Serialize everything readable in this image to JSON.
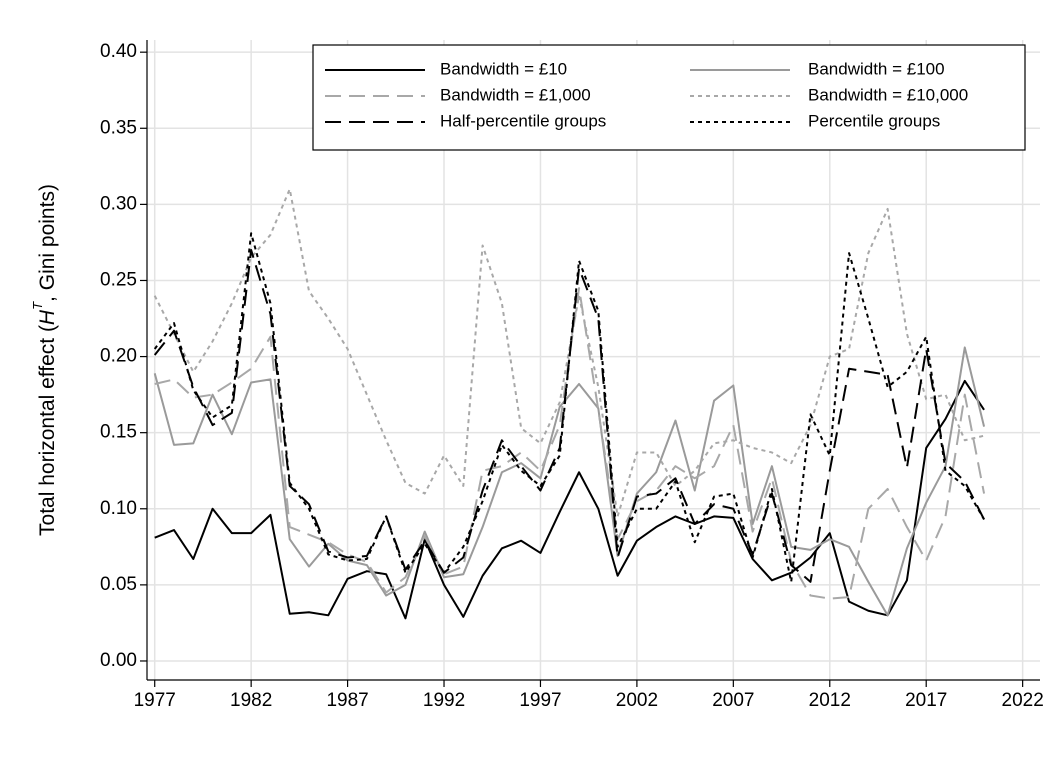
{
  "chart_data": {
    "type": "line",
    "ylabel": {
      "prefix": "Total horizontal effect (",
      "symbol": "H",
      "superscript": "T",
      "suffix": ", Gini points)"
    },
    "x": [
      1977,
      1978,
      1979,
      1980,
      1981,
      1982,
      1983,
      1984,
      1985,
      1986,
      1987,
      1988,
      1989,
      1990,
      1991,
      1992,
      1993,
      1994,
      1995,
      1996,
      1997,
      1998,
      1999,
      2000,
      2001,
      2002,
      2003,
      2004,
      2005,
      2006,
      2007,
      2008,
      2009,
      2010,
      2011,
      2012,
      2013,
      2014,
      2015,
      2016,
      2017,
      2018,
      2019,
      2020
    ],
    "series": [
      {
        "name": "Bandwidth = £10",
        "color": "#000000",
        "style": "solid",
        "values": [
          0.081,
          0.086,
          0.067,
          0.1,
          0.084,
          0.084,
          0.096,
          0.031,
          0.032,
          0.03,
          0.054,
          0.059,
          0.057,
          0.028,
          0.08,
          0.05,
          0.029,
          0.056,
          0.074,
          0.079,
          0.071,
          0.098,
          0.124,
          0.1,
          0.056,
          0.079,
          0.088,
          0.095,
          0.09,
          0.095,
          0.094,
          0.067,
          0.053,
          0.058,
          0.068,
          0.084,
          0.039,
          0.033,
          0.03,
          0.053,
          0.14,
          0.159,
          0.184,
          0.165
        ]
      },
      {
        "name": "Bandwidth = £100",
        "color": "#9a9a9a",
        "style": "solid",
        "values": [
          0.189,
          0.142,
          0.143,
          0.175,
          0.149,
          0.183,
          0.185,
          0.08,
          0.062,
          0.077,
          0.066,
          0.063,
          0.043,
          0.05,
          0.085,
          0.055,
          0.057,
          0.088,
          0.124,
          0.13,
          0.12,
          0.167,
          0.182,
          0.166,
          0.069,
          0.11,
          0.124,
          0.158,
          0.112,
          0.171,
          0.181,
          0.09,
          0.128,
          0.075,
          0.073,
          0.08,
          0.075,
          0.052,
          0.03,
          0.074,
          0.104,
          0.128,
          0.206,
          0.154
        ]
      },
      {
        "name": "Bandwidth = £1,000",
        "color": "#a8a8a8",
        "style": "longdash",
        "values": [
          0.182,
          0.185,
          0.173,
          0.175,
          0.183,
          0.192,
          0.213,
          0.088,
          0.083,
          0.078,
          0.07,
          0.065,
          0.045,
          0.055,
          0.082,
          0.057,
          0.062,
          0.125,
          0.128,
          0.137,
          0.125,
          0.155,
          0.245,
          0.165,
          0.08,
          0.105,
          0.112,
          0.128,
          0.12,
          0.128,
          0.155,
          0.085,
          0.12,
          0.065,
          0.043,
          0.041,
          0.042,
          0.1,
          0.113,
          0.088,
          0.066,
          0.095,
          0.175,
          0.11
        ]
      },
      {
        "name": "Bandwidth = £10,000",
        "color": "#a8a8a8",
        "style": "shortdash",
        "values": [
          0.24,
          0.215,
          0.19,
          0.21,
          0.235,
          0.265,
          0.28,
          0.31,
          0.243,
          0.225,
          0.205,
          0.175,
          0.145,
          0.117,
          0.11,
          0.135,
          0.115,
          0.273,
          0.235,
          0.153,
          0.143,
          0.17,
          0.24,
          0.18,
          0.095,
          0.137,
          0.137,
          0.115,
          0.125,
          0.143,
          0.145,
          0.14,
          0.137,
          0.13,
          0.155,
          0.2,
          0.205,
          0.268,
          0.297,
          0.215,
          0.172,
          0.175,
          0.145,
          0.148
        ]
      },
      {
        "name": "Half-percentile groups",
        "color": "#000000",
        "style": "longdash",
        "values": [
          0.201,
          0.217,
          0.18,
          0.155,
          0.163,
          0.27,
          0.228,
          0.115,
          0.103,
          0.072,
          0.068,
          0.069,
          0.095,
          0.06,
          0.079,
          0.058,
          0.068,
          0.112,
          0.145,
          0.128,
          0.112,
          0.14,
          0.258,
          0.225,
          0.068,
          0.108,
          0.11,
          0.12,
          0.09,
          0.103,
          0.1,
          0.07,
          0.11,
          0.063,
          0.052,
          0.125,
          0.192,
          0.19,
          0.188,
          0.127,
          0.205,
          0.13,
          0.118,
          0.093
        ]
      },
      {
        "name": "Percentile groups",
        "color": "#000000",
        "style": "shortdash",
        "values": [
          0.205,
          0.222,
          0.178,
          0.16,
          0.168,
          0.281,
          0.235,
          0.117,
          0.1,
          0.07,
          0.066,
          0.067,
          0.095,
          0.058,
          0.077,
          0.058,
          0.075,
          0.105,
          0.142,
          0.125,
          0.115,
          0.135,
          0.263,
          0.23,
          0.075,
          0.1,
          0.1,
          0.118,
          0.078,
          0.108,
          0.11,
          0.068,
          0.113,
          0.052,
          0.162,
          0.135,
          0.268,
          0.225,
          0.18,
          0.19,
          0.213,
          0.125,
          0.115,
          0.093
        ]
      }
    ],
    "xlim": [
      1976.6,
      2022.9
    ],
    "ylim": [
      -0.0125,
      0.408
    ],
    "xticks": [
      1977,
      1982,
      1987,
      1992,
      1997,
      2002,
      2007,
      2012,
      2017,
      2022
    ],
    "yticks": [
      {
        "value": 0,
        "label": "0.00"
      },
      {
        "value": 0.05,
        "label": "0.05"
      },
      {
        "value": 0.1,
        "label": "0.10"
      },
      {
        "value": 0.15,
        "label": "0.15"
      },
      {
        "value": 0.2,
        "label": "0.20"
      },
      {
        "value": 0.25,
        "label": "0.25"
      },
      {
        "value": 0.3,
        "label": "0.30"
      },
      {
        "value": 0.35,
        "label": "0.35"
      },
      {
        "value": 0.4,
        "label": "0.40"
      }
    ],
    "grid": true
  }
}
